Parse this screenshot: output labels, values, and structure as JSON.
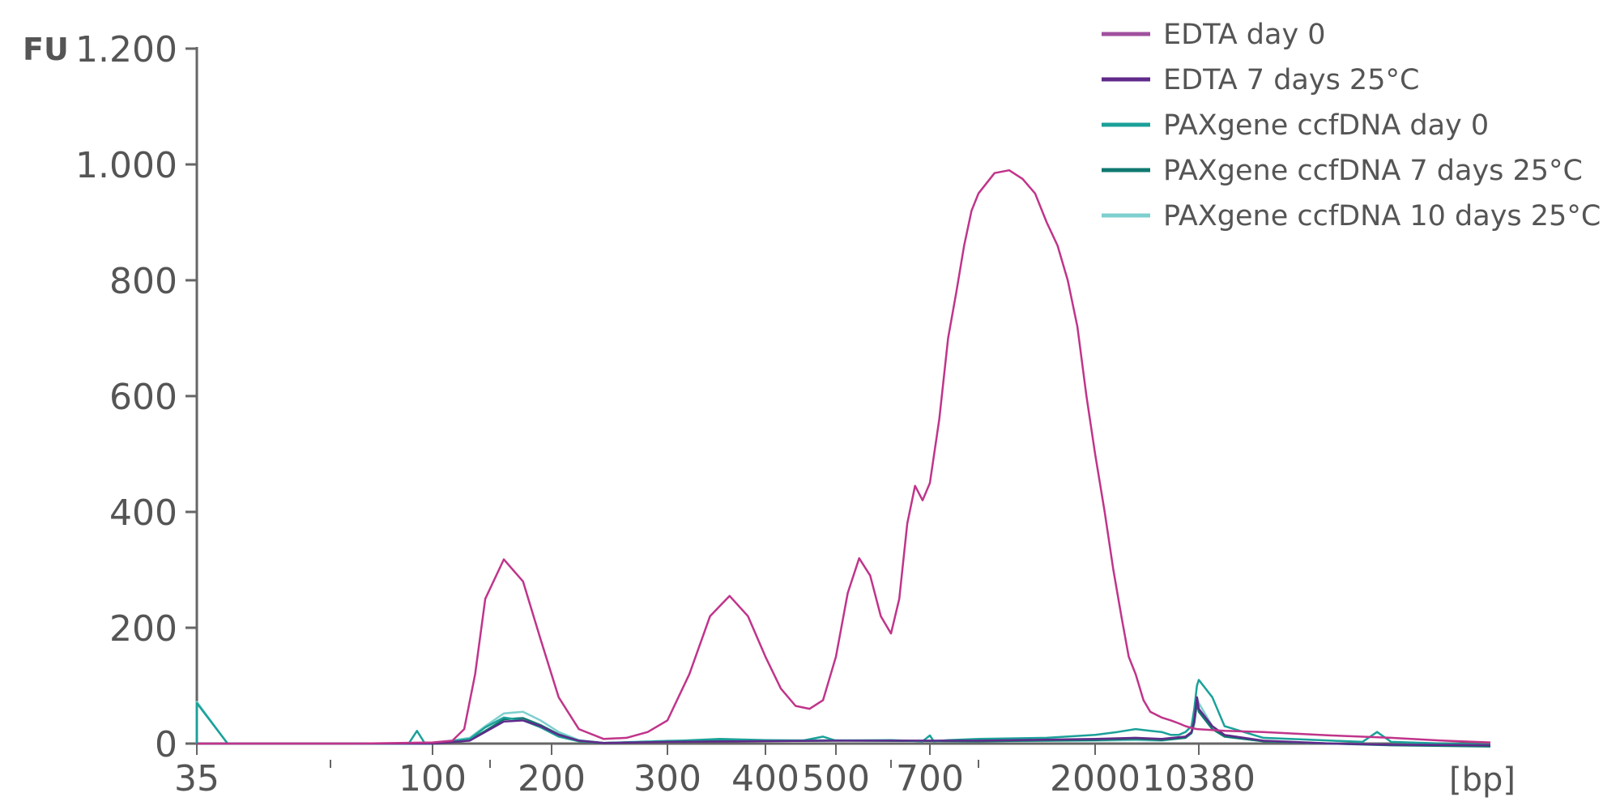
{
  "chart_data": {
    "type": "line",
    "title": "",
    "ylabel": "FU",
    "xlabel": "[bp]",
    "ylim": [
      0,
      1200
    ],
    "yticks": [
      0,
      200,
      400,
      600,
      800,
      1000,
      1200
    ],
    "ytick_labels": [
      "0",
      "200",
      "400",
      "600",
      "800",
      "1.000",
      "1.200"
    ],
    "x_scale": "ladder",
    "x_ladder": [
      35,
      50,
      100,
      150,
      200,
      300,
      400,
      500,
      600,
      700,
      1000,
      2000,
      3000,
      10380,
      20000
    ],
    "xtick_labels": [
      "35",
      "100",
      "200",
      "300",
      "400",
      "500",
      "700",
      "2000",
      "10380"
    ],
    "minor_xticks": [
      50,
      150,
      600,
      1000
    ],
    "grid": false,
    "legend_position": "top-right",
    "colors": {
      "EDTA day 0": "#a0509e",
      "EDTA 7 days 25°C": "#5f2a8a",
      "PAXgene ccfDNA day 0": "#1aa199",
      "PAXgene ccfDNA 7 days 25°C": "#0f7870",
      "PAXgene ccfDNA 10 days 25°C": "#7ecfcf",
      "axis": "#666666",
      "trace": "#c0348a"
    },
    "series": [
      {
        "name": "EDTA day 0",
        "x": [
          20,
          35,
          40,
          60,
          80,
          100,
          115,
          125,
          135,
          145,
          160,
          175,
          190,
          205,
          220,
          240,
          260,
          280,
          300,
          320,
          340,
          360,
          380,
          400,
          420,
          440,
          460,
          480,
          500,
          520,
          540,
          560,
          580,
          600,
          620,
          640,
          660,
          680,
          700,
          750,
          800,
          850,
          900,
          950,
          1000,
          1100,
          1200,
          1300,
          1400,
          1500,
          1600,
          1700,
          1800,
          1900,
          2000,
          2200,
          2400,
          2600,
          2800,
          3000,
          3500,
          4000,
          5000,
          6000,
          7000,
          8000,
          9000,
          10000,
          11000,
          12000,
          14000,
          16000,
          18000,
          20000
        ],
        "y": [
          0,
          0,
          0,
          0,
          1,
          2,
          5,
          25,
          120,
          250,
          318,
          280,
          180,
          80,
          25,
          8,
          10,
          20,
          40,
          120,
          220,
          255,
          220,
          150,
          95,
          65,
          60,
          75,
          150,
          260,
          320,
          290,
          220,
          190,
          250,
          380,
          445,
          420,
          450,
          560,
          700,
          780,
          860,
          920,
          950,
          985,
          990,
          975,
          950,
          900,
          860,
          800,
          720,
          600,
          500,
          400,
          300,
          220,
          150,
          120,
          75,
          55,
          45,
          40,
          35,
          30,
          27,
          25,
          22,
          20,
          14,
          10,
          5,
          2
        ]
      },
      {
        "name": "EDTA 7 days 25°C",
        "x": [
          20,
          35,
          60,
          100,
          130,
          145,
          160,
          175,
          190,
          205,
          220,
          240,
          300,
          500,
          1000,
          2000,
          3000,
          5000,
          8000,
          9000,
          9500,
          10000,
          10380,
          10700,
          11000,
          12000,
          14000,
          16000,
          20000
        ],
        "y": [
          0,
          0,
          0,
          0,
          5,
          20,
          38,
          40,
          30,
          15,
          5,
          1,
          3,
          5,
          5,
          8,
          10,
          8,
          12,
          20,
          40,
          80,
          60,
          30,
          15,
          5,
          0,
          -2,
          -3
        ]
      },
      {
        "name": "PAXgene ccfDNA day 0",
        "x": [
          20,
          32,
          35,
          38,
          60,
          85,
          90,
          95,
          100,
          130,
          145,
          160,
          175,
          190,
          205,
          220,
          240,
          300,
          350,
          400,
          450,
          480,
          500,
          600,
          680,
          700,
          720,
          800,
          1000,
          1500,
          2000,
          2500,
          3000,
          4000,
          5000,
          6000,
          7000,
          8000,
          9000,
          9500,
          10000,
          10380,
          10700,
          11000,
          12000,
          14000,
          15000,
          15500,
          16000,
          18000,
          20000
        ],
        "y": [
          0,
          0,
          70,
          0,
          0,
          0,
          22,
          0,
          0,
          8,
          28,
          45,
          40,
          28,
          12,
          4,
          1,
          4,
          8,
          6,
          5,
          12,
          5,
          6,
          4,
          14,
          4,
          6,
          8,
          10,
          15,
          20,
          25,
          22,
          20,
          15,
          15,
          20,
          30,
          60,
          100,
          110,
          80,
          30,
          10,
          5,
          3,
          20,
          3,
          0,
          -2
        ]
      },
      {
        "name": "PAXgene ccfDNA 7 days 25°C",
        "x": [
          20,
          35,
          60,
          100,
          130,
          145,
          160,
          175,
          190,
          205,
          220,
          240,
          300,
          500,
          1000,
          2000,
          3000,
          5000,
          8000,
          9000,
          9500,
          10000,
          10380,
          10700,
          11000,
          12000,
          14000,
          16000,
          20000
        ],
        "y": [
          0,
          0,
          0,
          0,
          6,
          22,
          42,
          44,
          32,
          16,
          5,
          1,
          4,
          5,
          4,
          6,
          8,
          6,
          10,
          18,
          35,
          70,
          55,
          25,
          12,
          4,
          0,
          -3,
          -5
        ]
      },
      {
        "name": "PAXgene ccfDNA 10 days 25°C",
        "x": [
          20,
          32,
          35,
          38,
          60,
          100,
          130,
          145,
          160,
          175,
          190,
          205,
          220,
          240,
          300,
          500,
          1000,
          2000,
          3000,
          5000,
          8000,
          9000,
          9500,
          10000,
          10380,
          10700,
          11000,
          12000,
          14000,
          16000,
          20000
        ],
        "y": [
          0,
          0,
          72,
          0,
          0,
          0,
          10,
          30,
          52,
          55,
          40,
          20,
          6,
          1,
          5,
          6,
          4,
          5,
          6,
          5,
          10,
          20,
          45,
          80,
          70,
          30,
          12,
          4,
          0,
          -2,
          -3
        ]
      }
    ]
  }
}
